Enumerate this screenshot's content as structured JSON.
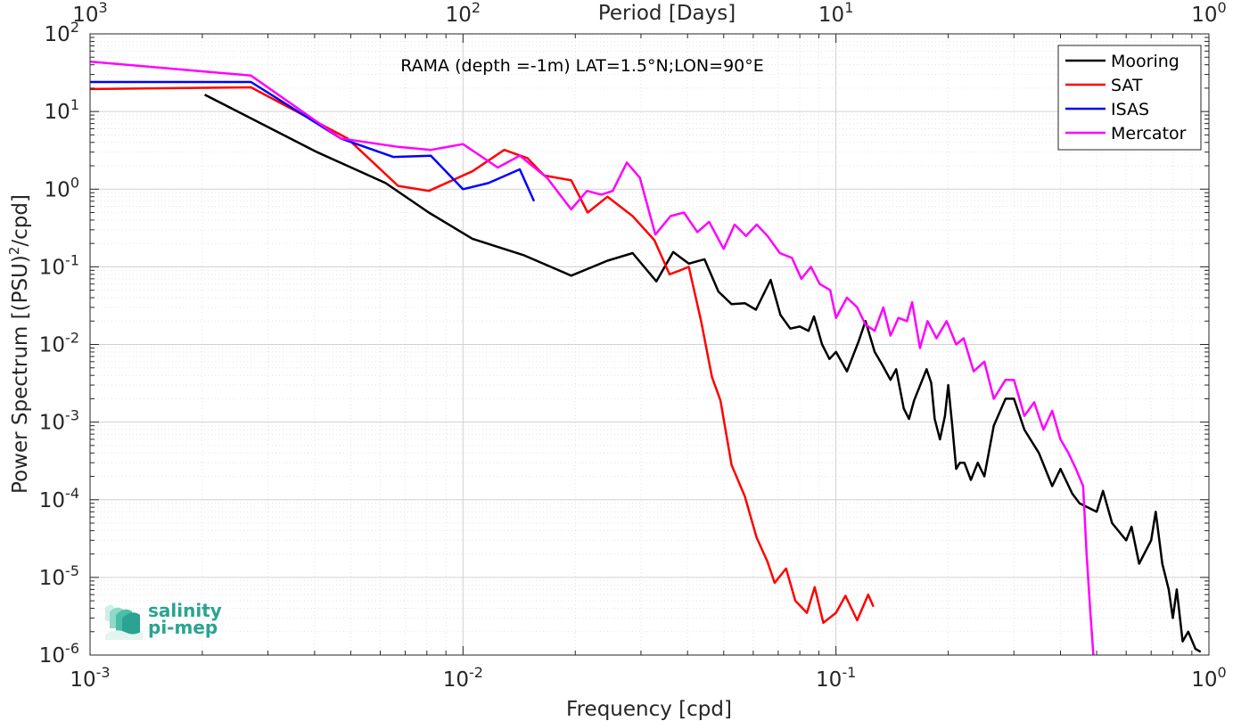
{
  "chart_data": {
    "type": "line",
    "title": "",
    "annotation": "RAMA (depth =-1m) LAT=1.5°N;LON=90°E",
    "xlabel": "Frequency [cpd]",
    "ylabel": "Power Spectrum [(PSU)",
    "ylabel_sup": "2",
    "ylabel_end": "/cpd]",
    "top_xlabel": "Period [Days]",
    "xscale": "log",
    "yscale": "log",
    "xlim": [
      0.001,
      1
    ],
    "ylim": [
      1e-06,
      100
    ],
    "grid": true,
    "legend_position": "top-right",
    "x_ticks": [
      {
        "value": 0.001,
        "base": "10",
        "exp": "-3"
      },
      {
        "value": 0.01,
        "base": "10",
        "exp": "-2"
      },
      {
        "value": 0.1,
        "base": "10",
        "exp": "-1"
      },
      {
        "value": 1,
        "base": "10",
        "exp": "0"
      }
    ],
    "top_ticks": [
      {
        "value": 0.001,
        "base": "10",
        "exp": "3"
      },
      {
        "value": 0.01,
        "base": "10",
        "exp": "2"
      },
      {
        "value": 0.1,
        "base": "10",
        "exp": "1"
      },
      {
        "value": 1,
        "base": "10",
        "exp": "0"
      }
    ],
    "y_ticks": [
      {
        "value": 1e-06,
        "base": "10",
        "exp": "-6"
      },
      {
        "value": 1e-05,
        "base": "10",
        "exp": "-5"
      },
      {
        "value": 0.0001,
        "base": "10",
        "exp": "-4"
      },
      {
        "value": 0.001,
        "base": "10",
        "exp": "-3"
      },
      {
        "value": 0.01,
        "base": "10",
        "exp": "-2"
      },
      {
        "value": 0.1,
        "base": "10",
        "exp": "-1"
      },
      {
        "value": 1,
        "base": "10",
        "exp": "0"
      },
      {
        "value": 10,
        "base": "10",
        "exp": "1"
      },
      {
        "value": 100,
        "base": "10",
        "exp": "2"
      }
    ],
    "series": [
      {
        "name": "Mooring",
        "color": "#000000",
        "points": [
          [
            0.00203,
            16.5
          ],
          [
            0.00406,
            3.0
          ],
          [
            0.0062,
            1.2
          ],
          [
            0.0081,
            0.5
          ],
          [
            0.0106,
            0.23
          ],
          [
            0.0146,
            0.14
          ],
          [
            0.0195,
            0.077
          ],
          [
            0.0244,
            0.12
          ],
          [
            0.0285,
            0.15
          ],
          [
            0.033,
            0.065
          ],
          [
            0.0366,
            0.155
          ],
          [
            0.0403,
            0.11
          ],
          [
            0.0444,
            0.125
          ],
          [
            0.0484,
            0.048
          ],
          [
            0.0525,
            0.033
          ],
          [
            0.057,
            0.034
          ],
          [
            0.061,
            0.028
          ],
          [
            0.0668,
            0.068
          ],
          [
            0.071,
            0.024
          ],
          [
            0.0754,
            0.016
          ],
          [
            0.08,
            0.017
          ],
          [
            0.0844,
            0.015
          ],
          [
            0.0873,
            0.023
          ],
          [
            0.0918,
            0.01
          ],
          [
            0.0961,
            0.0065
          ],
          [
            0.1,
            0.008
          ],
          [
            0.107,
            0.0045
          ],
          [
            0.115,
            0.011
          ],
          [
            0.12,
            0.02
          ],
          [
            0.127,
            0.008
          ],
          [
            0.133,
            0.0055
          ],
          [
            0.14,
            0.0035
          ],
          [
            0.145,
            0.0048
          ],
          [
            0.152,
            0.0015
          ],
          [
            0.157,
            0.0011
          ],
          [
            0.162,
            0.0019
          ],
          [
            0.17,
            0.0034
          ],
          [
            0.175,
            0.0048
          ],
          [
            0.18,
            0.0032
          ],
          [
            0.184,
            0.0011
          ],
          [
            0.19,
            0.0006
          ],
          [
            0.196,
            0.0012
          ],
          [
            0.2,
            0.003
          ],
          [
            0.205,
            0.0009
          ],
          [
            0.21,
            0.00025
          ],
          [
            0.215,
            0.0003
          ],
          [
            0.221,
            0.0003
          ],
          [
            0.23,
            0.00018
          ],
          [
            0.24,
            0.0003
          ],
          [
            0.25,
            0.0002
          ],
          [
            0.265,
            0.0009
          ],
          [
            0.285,
            0.002
          ],
          [
            0.3,
            0.002
          ],
          [
            0.32,
            0.0008
          ],
          [
            0.35,
            0.0004
          ],
          [
            0.38,
            0.00015
          ],
          [
            0.4,
            0.00025
          ],
          [
            0.43,
            0.00012
          ],
          [
            0.45,
            9e-05
          ],
          [
            0.5,
            7e-05
          ],
          [
            0.52,
            0.00013
          ],
          [
            0.55,
            5e-05
          ],
          [
            0.6,
            3e-05
          ],
          [
            0.62,
            4.5e-05
          ],
          [
            0.65,
            1.5e-05
          ],
          [
            0.7,
            3e-05
          ],
          [
            0.72,
            7e-05
          ],
          [
            0.75,
            1.5e-05
          ],
          [
            0.78,
            7e-06
          ],
          [
            0.8,
            3e-06
          ],
          [
            0.82,
            7e-06
          ],
          [
            0.85,
            1.5e-06
          ],
          [
            0.88,
            2e-06
          ],
          [
            0.92,
            1.2e-06
          ],
          [
            0.95,
            1.1e-06
          ]
        ]
      },
      {
        "name": "SAT",
        "color": "#ff0000",
        "points": [
          [
            0.001,
            19.5
          ],
          [
            0.0027,
            20.5
          ],
          [
            0.0049,
            4.5
          ],
          [
            0.0067,
            1.1
          ],
          [
            0.0081,
            0.95
          ],
          [
            0.0106,
            1.7
          ],
          [
            0.0129,
            3.2
          ],
          [
            0.0149,
            2.5
          ],
          [
            0.0165,
            1.5
          ],
          [
            0.0195,
            1.3
          ],
          [
            0.0216,
            0.5
          ],
          [
            0.0244,
            0.8
          ],
          [
            0.0285,
            0.45
          ],
          [
            0.0326,
            0.22
          ],
          [
            0.0358,
            0.08
          ],
          [
            0.0382,
            0.09
          ],
          [
            0.0403,
            0.1
          ],
          [
            0.0435,
            0.02
          ],
          [
            0.0465,
            0.0038
          ],
          [
            0.049,
            0.0019
          ],
          [
            0.0525,
            0.00028
          ],
          [
            0.057,
            0.00011
          ],
          [
            0.0612,
            3.3e-05
          ],
          [
            0.0655,
            1.6e-05
          ],
          [
            0.0685,
            8.5e-06
          ],
          [
            0.0735,
            1.3e-05
          ],
          [
            0.0778,
            5e-06
          ],
          [
            0.0836,
            3.5e-06
          ],
          [
            0.0877,
            7.5e-06
          ],
          [
            0.0925,
            2.6e-06
          ],
          [
            0.1,
            3.5e-06
          ],
          [
            0.106,
            5.8e-06
          ],
          [
            0.114,
            2.8e-06
          ],
          [
            0.122,
            6e-06
          ],
          [
            0.126,
            4.2e-06
          ]
        ]
      },
      {
        "name": "ISAS",
        "color": "#0000ff",
        "points": [
          [
            0.001,
            24
          ],
          [
            0.0027,
            24
          ],
          [
            0.0047,
            4.5
          ],
          [
            0.0065,
            2.6
          ],
          [
            0.0082,
            2.7
          ],
          [
            0.01,
            1.0
          ],
          [
            0.0117,
            1.2
          ],
          [
            0.0142,
            1.8
          ],
          [
            0.0155,
            0.7
          ]
        ]
      },
      {
        "name": "Mercator",
        "color": "#ff00ff",
        "points": [
          [
            0.001,
            44
          ],
          [
            0.0027,
            29
          ],
          [
            0.0047,
            4.5
          ],
          [
            0.0067,
            3.5
          ],
          [
            0.0082,
            3.2
          ],
          [
            0.01,
            3.8
          ],
          [
            0.0124,
            1.9
          ],
          [
            0.0142,
            2.7
          ],
          [
            0.0168,
            1.4
          ],
          [
            0.0195,
            0.55
          ],
          [
            0.0215,
            0.95
          ],
          [
            0.0235,
            0.85
          ],
          [
            0.0252,
            0.95
          ],
          [
            0.0275,
            2.2
          ],
          [
            0.0298,
            1.4
          ],
          [
            0.0328,
            0.26
          ],
          [
            0.036,
            0.45
          ],
          [
            0.0391,
            0.5
          ],
          [
            0.0425,
            0.28
          ],
          [
            0.0457,
            0.38
          ],
          [
            0.05,
            0.17
          ],
          [
            0.0535,
            0.35
          ],
          [
            0.0574,
            0.25
          ],
          [
            0.0613,
            0.35
          ],
          [
            0.0655,
            0.25
          ],
          [
            0.0707,
            0.15
          ],
          [
            0.0762,
            0.13
          ],
          [
            0.0808,
            0.07
          ],
          [
            0.0857,
            0.1
          ],
          [
            0.0905,
            0.06
          ],
          [
            0.0965,
            0.05
          ],
          [
            0.1,
            0.022
          ],
          [
            0.107,
            0.04
          ],
          [
            0.114,
            0.03
          ],
          [
            0.12,
            0.018
          ],
          [
            0.127,
            0.015
          ],
          [
            0.134,
            0.03
          ],
          [
            0.14,
            0.013
          ],
          [
            0.147,
            0.022
          ],
          [
            0.155,
            0.02
          ],
          [
            0.16,
            0.035
          ],
          [
            0.168,
            0.009
          ],
          [
            0.176,
            0.02
          ],
          [
            0.186,
            0.012
          ],
          [
            0.198,
            0.02
          ],
          [
            0.21,
            0.01
          ],
          [
            0.22,
            0.012
          ],
          [
            0.234,
            0.0045
          ],
          [
            0.25,
            0.006
          ],
          [
            0.265,
            0.002
          ],
          [
            0.285,
            0.0035
          ],
          [
            0.3,
            0.0035
          ],
          [
            0.32,
            0.0012
          ],
          [
            0.34,
            0.0018
          ],
          [
            0.36,
            0.0008
          ],
          [
            0.38,
            0.0014
          ],
          [
            0.4,
            0.0006
          ],
          [
            0.42,
            0.0004
          ],
          [
            0.44,
            0.00025
          ],
          [
            0.46,
            0.00015
          ],
          [
            0.47,
            2e-05
          ],
          [
            0.48,
            4e-06
          ],
          [
            0.49,
            1e-06
          ]
        ]
      }
    ]
  },
  "logo": {
    "line1": "salinity",
    "line2": "pi-mep"
  }
}
